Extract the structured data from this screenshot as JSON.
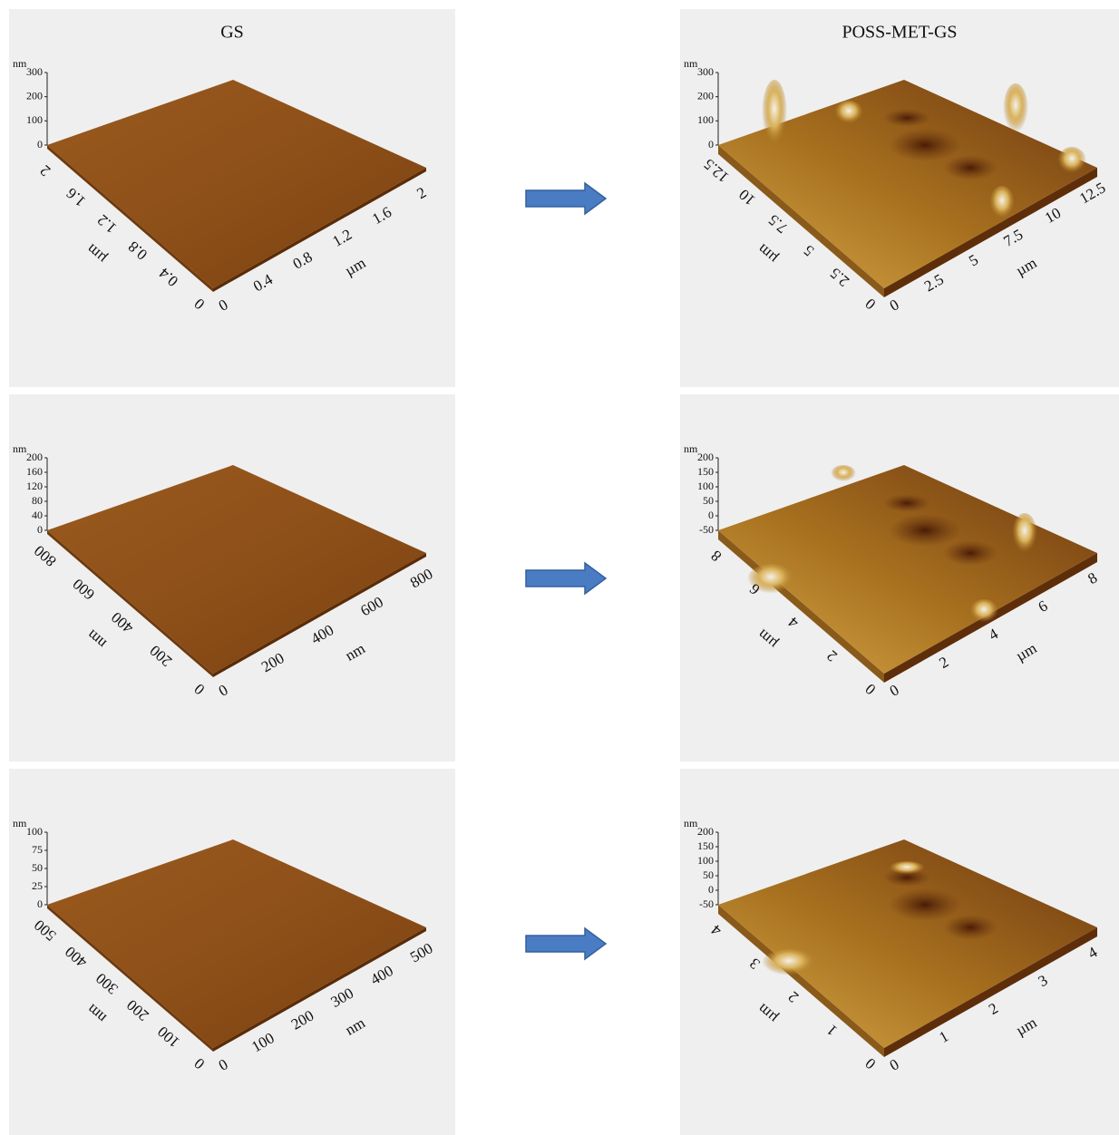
{
  "panels": [
    {
      "title": "GS",
      "z_unit": "nm",
      "z_ticks": [
        "0",
        "100",
        "200",
        "300"
      ],
      "left_ticks": [
        "0",
        "0.4",
        "0.8",
        "1.2",
        "1.6",
        "2"
      ],
      "left_unit": "µm",
      "right_ticks": [
        "0",
        "0.4",
        "0.8",
        "1.2",
        "1.6",
        "2"
      ],
      "right_unit": "µm"
    },
    {
      "title": "POSS-MET-GS",
      "z_unit": "nm",
      "z_ticks": [
        "0",
        "100",
        "200",
        "300"
      ],
      "left_ticks": [
        "0",
        "2.5",
        "5",
        "7.5",
        "10",
        "12.5"
      ],
      "left_unit": "µm",
      "right_ticks": [
        "0",
        "2.5",
        "5",
        "7.5",
        "10",
        "12.5"
      ],
      "right_unit": "µm"
    },
    {
      "z_unit": "nm",
      "z_ticks": [
        "0",
        "40",
        "80",
        "120",
        "160",
        "200"
      ],
      "left_ticks": [
        "0",
        "200",
        "400",
        "600",
        "800"
      ],
      "left_unit": "nm",
      "right_ticks": [
        "0",
        "200",
        "400",
        "600",
        "800"
      ],
      "right_unit": "nm"
    },
    {
      "z_unit": "nm",
      "z_ticks": [
        "-50",
        "0",
        "50",
        "100",
        "150",
        "200"
      ],
      "left_ticks": [
        "0",
        "2",
        "4",
        "6",
        "8"
      ],
      "left_unit": "µm",
      "right_ticks": [
        "0",
        "2",
        "4",
        "6",
        "8"
      ],
      "right_unit": "µm"
    },
    {
      "z_unit": "nm",
      "z_ticks": [
        "0",
        "25",
        "50",
        "75",
        "100"
      ],
      "left_ticks": [
        "0",
        "100",
        "200",
        "300",
        "400",
        "500"
      ],
      "left_unit": "nm",
      "right_ticks": [
        "0",
        "100",
        "200",
        "300",
        "400",
        "500"
      ],
      "right_unit": "nm"
    },
    {
      "z_unit": "nm",
      "z_ticks": [
        "-50",
        "0",
        "50",
        "100",
        "150",
        "200"
      ],
      "left_ticks": [
        "0",
        "1",
        "2",
        "3",
        "4"
      ],
      "left_unit": "µm",
      "right_ticks": [
        "0",
        "1",
        "2",
        "3",
        "4"
      ],
      "right_unit": "µm"
    }
  ]
}
